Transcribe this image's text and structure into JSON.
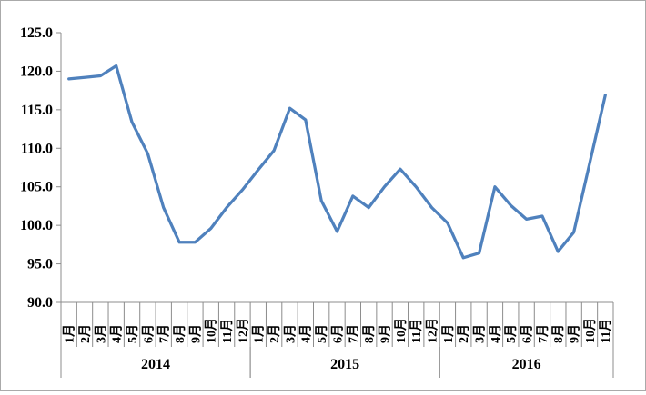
{
  "chart_data": {
    "type": "line",
    "title": "",
    "legend": "none",
    "grid": "off",
    "colors": {
      "line": "#4F81BD",
      "axis": "#8c8c8c",
      "text": "#000000",
      "frame": "#aaaaaa",
      "background": "#ffffff"
    },
    "y_axis": {
      "min": 90,
      "max": 125,
      "step": 5,
      "ticks": [
        {
          "label": "125.0",
          "value": 125
        },
        {
          "label": "120.0",
          "value": 120
        },
        {
          "label": "115.0",
          "value": 115
        },
        {
          "label": "110.0",
          "value": 110
        },
        {
          "label": "105.0",
          "value": 105
        },
        {
          "label": "100.0",
          "value": 100
        },
        {
          "label": "95.0",
          "value": 95
        },
        {
          "label": "90.0",
          "value": 90
        }
      ]
    },
    "x_axis": {
      "groups": [
        {
          "year": "2014",
          "months": [
            "1月",
            "2月",
            "3月",
            "4月",
            "5月",
            "6月",
            "7月",
            "8月",
            "9月",
            "10月",
            "11月",
            "12月"
          ],
          "values": [
            119.0,
            119.2,
            119.4,
            120.7,
            113.4,
            109.3,
            102.3,
            97.8,
            97.8,
            99.6,
            102.3,
            104.6
          ]
        },
        {
          "year": "2015",
          "months": [
            "1月",
            "2月",
            "3月",
            "4月",
            "5月",
            "6月",
            "7月",
            "8月",
            "9月",
            "10月",
            "11月",
            "12月"
          ],
          "values": [
            107.2,
            109.7,
            115.2,
            113.7,
            103.2,
            99.2,
            103.8,
            102.3,
            105.0,
            107.3,
            105.0,
            102.3
          ]
        },
        {
          "year": "2016",
          "months": [
            "1月",
            "2月",
            "3月",
            "4月",
            "5月",
            "6月",
            "7月",
            "8月",
            "9月",
            "10月",
            "11月"
          ],
          "values": [
            100.3,
            95.8,
            96.4,
            105.0,
            102.6,
            100.8,
            101.2,
            96.6,
            99.1,
            108.0,
            116.9
          ]
        }
      ]
    },
    "series": [
      {
        "name": "",
        "color": "#4F81BD",
        "values": [
          119.0,
          119.2,
          119.4,
          120.7,
          113.4,
          109.3,
          102.3,
          97.8,
          97.8,
          99.6,
          102.3,
          104.6,
          107.2,
          109.7,
          115.2,
          113.7,
          103.2,
          99.2,
          103.8,
          102.3,
          105.0,
          107.3,
          105.0,
          102.3,
          100.3,
          95.8,
          96.4,
          105.0,
          102.6,
          100.8,
          101.2,
          96.6,
          99.1,
          108.0,
          116.9
        ]
      }
    ]
  }
}
